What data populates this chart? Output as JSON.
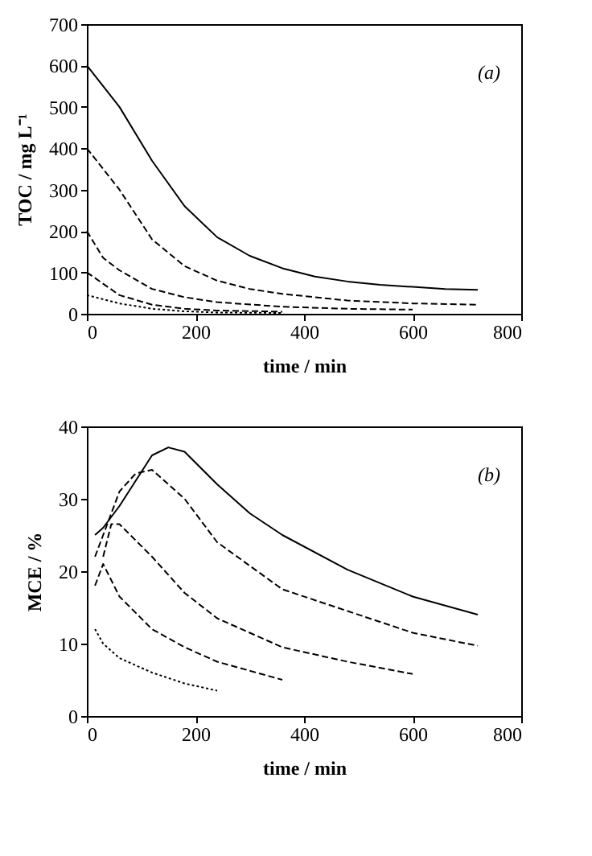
{
  "chart_data": [
    {
      "type": "line",
      "xlabel": "time / min",
      "ylabel": "TOC / mg L⁻¹",
      "annotations": [
        "(a)"
      ],
      "xlim": [
        0,
        800
      ],
      "xticks": [
        0,
        200,
        400,
        600,
        800
      ],
      "ylim": [
        0,
        700
      ],
      "yticks": [
        0,
        100,
        200,
        300,
        400,
        500,
        600,
        700
      ],
      "grid": false,
      "series": [
        {
          "color": "#000000",
          "line_style": "solid",
          "x": [
            0,
            60,
            120,
            180,
            240,
            300,
            360,
            420,
            480,
            540,
            600,
            660,
            720
          ],
          "values": [
            600,
            500,
            370,
            260,
            185,
            140,
            110,
            90,
            78,
            70,
            65,
            60,
            58
          ]
        },
        {
          "color": "#000000",
          "line_style": "dashed",
          "x": [
            0,
            60,
            120,
            180,
            240,
            300,
            360,
            480,
            600,
            720
          ],
          "values": [
            400,
            300,
            180,
            115,
            80,
            60,
            48,
            32,
            25,
            22
          ]
        },
        {
          "color": "#000000",
          "line_style": "dashed",
          "x": [
            0,
            30,
            60,
            120,
            180,
            240,
            360,
            480,
            600
          ],
          "values": [
            200,
            135,
            105,
            60,
            40,
            28,
            17,
            12,
            10
          ]
        },
        {
          "color": "#000000",
          "line_style": "dashed",
          "x": [
            0,
            60,
            120,
            180,
            240,
            360
          ],
          "values": [
            100,
            45,
            22,
            12,
            8,
            5
          ]
        },
        {
          "color": "#000000",
          "line_style": "dotted",
          "x": [
            0,
            60,
            120,
            180,
            240,
            360
          ],
          "values": [
            45,
            25,
            12,
            6,
            3,
            2
          ]
        }
      ]
    },
    {
      "type": "line",
      "xlabel": "time / min",
      "ylabel": "MCE / %",
      "annotations": [
        "(b)"
      ],
      "xlim": [
        0,
        800
      ],
      "xticks": [
        0,
        200,
        400,
        600,
        800
      ],
      "ylim": [
        0,
        40
      ],
      "yticks": [
        0,
        10,
        20,
        30,
        40
      ],
      "grid": false,
      "series": [
        {
          "color": "#000000",
          "line_style": "solid",
          "x": [
            15,
            30,
            60,
            120,
            150,
            180,
            240,
            300,
            360,
            480,
            600,
            720
          ],
          "values": [
            25,
            26,
            29,
            36,
            37.1,
            36.5,
            32,
            28,
            25,
            20.2,
            16.5,
            14
          ]
        },
        {
          "color": "#000000",
          "line_style": "dashed",
          "x": [
            15,
            30,
            60,
            90,
            120,
            180,
            240,
            360,
            480,
            600,
            720
          ],
          "values": [
            22,
            25,
            31,
            33.5,
            34,
            30,
            24,
            17.5,
            14.5,
            11.5,
            9.7
          ]
        },
        {
          "color": "#000000",
          "line_style": "dashed",
          "x": [
            30,
            45,
            60,
            120,
            180,
            240,
            360,
            480,
            600
          ],
          "values": [
            22,
            26.5,
            26.5,
            22,
            17,
            13.5,
            9.5,
            7.5,
            5.8
          ]
        },
        {
          "color": "#000000",
          "line_style": "dashed",
          "x": [
            15,
            30,
            60,
            120,
            180,
            240,
            360
          ],
          "values": [
            18,
            21,
            16.5,
            12,
            9.5,
            7.5,
            5
          ]
        },
        {
          "color": "#000000",
          "line_style": "dotted",
          "x": [
            15,
            30,
            60,
            120,
            180,
            240
          ],
          "values": [
            12,
            10,
            8,
            6,
            4.5,
            3.5
          ]
        }
      ]
    }
  ]
}
